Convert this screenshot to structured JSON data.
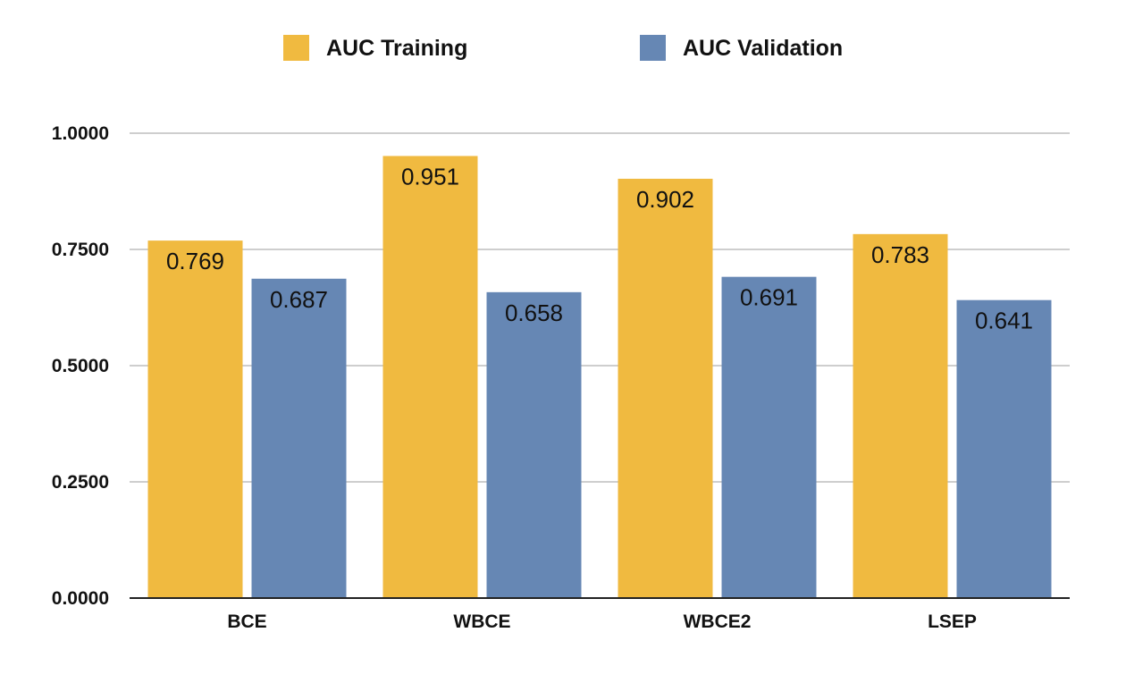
{
  "chart_data": {
    "type": "bar",
    "categories": [
      "BCE",
      "WBCE",
      "WBCE2",
      "LSEP"
    ],
    "series": [
      {
        "name": "AUC Training",
        "values": [
          0.769,
          0.951,
          0.902,
          0.783
        ],
        "labels": [
          "0.769",
          "0.951",
          "0.902",
          "0.783"
        ],
        "color": "#F0BA40"
      },
      {
        "name": "AUC Validation",
        "values": [
          0.687,
          0.658,
          0.691,
          0.641
        ],
        "labels": [
          "0.687",
          "0.658",
          "0.691",
          "0.641"
        ],
        "color": "#6687B4"
      }
    ],
    "ylim": [
      0,
      1
    ],
    "yticks": [
      0,
      0.25,
      0.5,
      0.75,
      1.0
    ],
    "ytick_labels": [
      "0.0000",
      "0.2500",
      "0.5000",
      "0.7500",
      "1.0000"
    ],
    "grid": true,
    "legend": "top-center",
    "title": "",
    "xlabel": "",
    "ylabel": ""
  }
}
